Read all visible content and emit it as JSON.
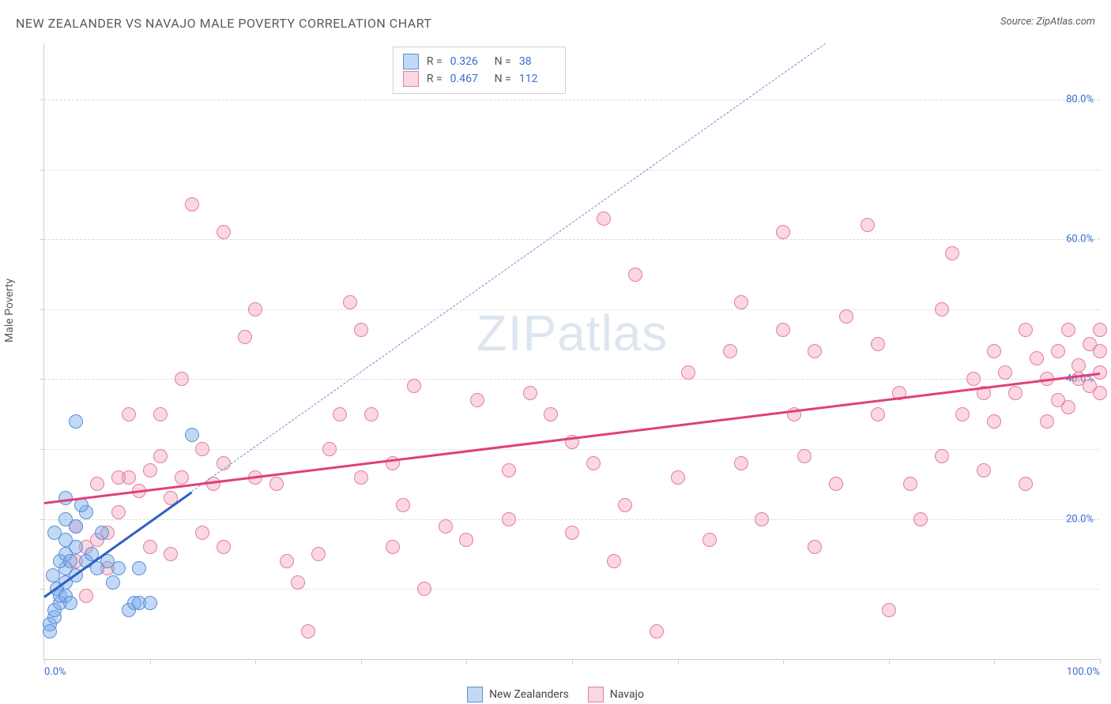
{
  "title": "NEW ZEALANDER VS NAVAJO MALE POVERTY CORRELATION CHART",
  "source_label": "Source: ZipAtlas.com",
  "ylabel": "Male Poverty",
  "watermark_text": "ZIPatlas",
  "chart": {
    "type": "scatter",
    "xlim": [
      0,
      100
    ],
    "ylim": [
      0,
      88
    ],
    "xtick_positions": [
      0,
      10,
      20,
      30,
      40,
      50,
      60,
      70,
      80,
      90,
      100
    ],
    "ytick_positions": [
      20,
      40,
      60,
      80
    ],
    "ytick_labels": [
      "20.0%",
      "40.0%",
      "60.0%",
      "80.0%"
    ],
    "dashed_grid_at": [
      20,
      40,
      60,
      80
    ],
    "dotted_grid_at": [
      10,
      30,
      50,
      70
    ],
    "xtick_labels_shown": {
      "0": "0.0%",
      "100": "100.0%"
    },
    "background_color": "#ffffff",
    "grid_color": "#d9d9d9",
    "axis_color": "#cfcfcf",
    "label_color": "#3b6bd6",
    "point_radius": 9,
    "point_border_width": 1.5
  },
  "series": [
    {
      "name": "New Zealanders",
      "fill": "rgba(120,170,235,0.45)",
      "stroke": "#5a8fd6",
      "line_color": "#2f5fc2",
      "dashed_color": "#6a8fd6",
      "r_label": "0.326",
      "n_label": "38",
      "regression_solid": {
        "x1": 0,
        "y1": 9,
        "x2": 14,
        "y2": 24
      },
      "regression_dashed": {
        "x1": 14,
        "y1": 24,
        "x2": 74,
        "y2": 88
      },
      "points": [
        [
          0.5,
          5
        ],
        [
          1,
          6
        ],
        [
          1,
          7
        ],
        [
          1.5,
          8
        ],
        [
          1.5,
          9
        ],
        [
          1.2,
          10
        ],
        [
          2,
          9
        ],
        [
          2,
          11
        ],
        [
          2.5,
          8
        ],
        [
          2,
          13
        ],
        [
          0.8,
          12
        ],
        [
          1.5,
          14
        ],
        [
          2,
          15
        ],
        [
          2.5,
          14
        ],
        [
          3,
          12
        ],
        [
          3,
          16
        ],
        [
          2,
          17
        ],
        [
          1,
          18
        ],
        [
          2,
          20
        ],
        [
          3,
          19
        ],
        [
          4,
          14
        ],
        [
          4.5,
          15
        ],
        [
          5,
          13
        ],
        [
          5.5,
          18
        ],
        [
          6,
          14
        ],
        [
          6.5,
          11
        ],
        [
          7,
          13
        ],
        [
          8,
          7
        ],
        [
          8.5,
          8
        ],
        [
          9,
          8
        ],
        [
          9,
          13
        ],
        [
          10,
          8
        ],
        [
          4,
          21
        ],
        [
          2,
          23
        ],
        [
          3,
          34
        ],
        [
          3.5,
          22
        ],
        [
          14,
          32
        ],
        [
          0.5,
          4
        ]
      ]
    },
    {
      "name": "Navajo",
      "fill": "rgba(240,140,170,0.35)",
      "stroke": "#e37da0",
      "line_color": "#e13f7a",
      "r_label": "0.467",
      "n_label": "112",
      "regression_solid": {
        "x1": 0,
        "y1": 22.5,
        "x2": 100,
        "y2": 41
      },
      "points": [
        [
          3,
          14
        ],
        [
          4,
          16
        ],
        [
          5,
          17
        ],
        [
          5,
          25
        ],
        [
          6,
          18
        ],
        [
          7,
          26
        ],
        [
          8,
          26
        ],
        [
          8,
          35
        ],
        [
          9,
          24
        ],
        [
          10,
          16
        ],
        [
          10,
          27
        ],
        [
          11,
          35
        ],
        [
          12,
          23
        ],
        [
          12,
          15
        ],
        [
          13,
          40
        ],
        [
          14,
          65
        ],
        [
          15,
          30
        ],
        [
          16,
          25
        ],
        [
          17,
          61
        ],
        [
          17,
          16
        ],
        [
          19,
          46
        ],
        [
          17,
          28
        ],
        [
          20,
          50
        ],
        [
          20,
          26
        ],
        [
          23,
          14
        ],
        [
          22,
          25
        ],
        [
          24,
          11
        ],
        [
          25,
          4
        ],
        [
          26,
          15
        ],
        [
          27,
          30
        ],
        [
          29,
          51
        ],
        [
          30,
          47
        ],
        [
          30,
          26
        ],
        [
          31,
          35
        ],
        [
          33,
          16
        ],
        [
          34,
          22
        ],
        [
          35,
          39
        ],
        [
          36,
          10
        ],
        [
          38,
          19
        ],
        [
          40,
          17
        ],
        [
          41,
          37
        ],
        [
          44,
          27
        ],
        [
          46,
          38
        ],
        [
          50,
          31
        ],
        [
          50,
          18
        ],
        [
          52,
          28
        ],
        [
          53,
          63
        ],
        [
          54,
          14
        ],
        [
          55,
          22
        ],
        [
          56,
          55
        ],
        [
          58,
          4
        ],
        [
          60,
          26
        ],
        [
          61,
          41
        ],
        [
          63,
          17
        ],
        [
          65,
          44
        ],
        [
          66,
          28
        ],
        [
          68,
          20
        ],
        [
          70,
          47
        ],
        [
          70,
          61
        ],
        [
          71,
          35
        ],
        [
          72,
          29
        ],
        [
          73,
          16
        ],
        [
          75,
          25
        ],
        [
          76,
          49
        ],
        [
          78,
          62
        ],
        [
          79,
          35
        ],
        [
          79,
          45
        ],
        [
          80,
          7
        ],
        [
          81,
          38
        ],
        [
          82,
          25
        ],
        [
          83,
          20
        ],
        [
          85,
          29
        ],
        [
          85,
          50
        ],
        [
          86,
          58
        ],
        [
          87,
          35
        ],
        [
          88,
          40
        ],
        [
          89,
          27
        ],
        [
          90,
          34
        ],
        [
          90,
          44
        ],
        [
          91,
          41
        ],
        [
          92,
          38
        ],
        [
          93,
          25
        ],
        [
          93,
          47
        ],
        [
          94,
          43
        ],
        [
          95,
          34
        ],
        [
          95,
          40
        ],
        [
          96,
          37
        ],
        [
          96,
          44
        ],
        [
          97,
          36
        ],
        [
          97,
          47
        ],
        [
          98,
          40
        ],
        [
          98,
          42
        ],
        [
          99,
          39
        ],
        [
          99,
          45
        ],
        [
          100,
          38
        ],
        [
          100,
          41
        ],
        [
          100,
          44
        ],
        [
          100,
          47
        ],
        [
          3,
          19
        ],
        [
          6,
          13
        ],
        [
          4,
          9
        ],
        [
          7,
          21
        ],
        [
          11,
          29
        ],
        [
          13,
          26
        ],
        [
          15,
          18
        ],
        [
          28,
          35
        ],
        [
          33,
          28
        ],
        [
          44,
          20
        ],
        [
          48,
          35
        ],
        [
          66,
          51
        ],
        [
          73,
          44
        ],
        [
          89,
          38
        ]
      ]
    }
  ],
  "legend_top": {
    "r_prefix": "R =",
    "n_prefix": "N ="
  },
  "legend_bottom": {
    "items": [
      "New Zealanders",
      "Navajo"
    ]
  }
}
